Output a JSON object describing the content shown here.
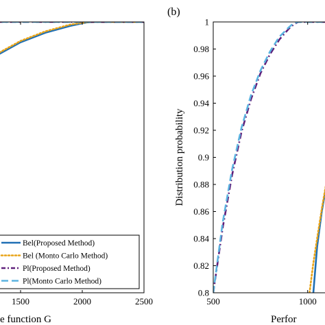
{
  "colors": {
    "bel_proposed": "#1f6fb4",
    "bel_monte_carlo": "#e8a317",
    "pl_proposed": "#5e1f7a",
    "pl_monte_carlo": "#5bb3e0"
  },
  "chart_data": [
    {
      "type": "line",
      "panel_label": "",
      "xlabel": "e function G",
      "ylabel": "",
      "xlim": [
        1100,
        2500
      ],
      "ylim": [
        0.8,
        1.0
      ],
      "x_ticks": [
        1500,
        2000,
        2500
      ],
      "legend": {
        "placement": "bottom-left",
        "entries": [
          "Bel(Proposed Method)",
          "Bel (Monto Carlo Method)",
          "Pl(Proposed Method)",
          "Pl(Monto Carlo Method)"
        ]
      },
      "series": [
        {
          "name": "Bel(Proposed Method)",
          "style": "solid",
          "color": "#1f6fb4",
          "x": [
            1100,
            1300,
            1500,
            1700,
            1900,
            2000,
            2050,
            2100,
            2500
          ],
          "y": [
            0.958,
            0.975,
            0.985,
            0.992,
            0.997,
            0.999,
            0.9998,
            1.0,
            1.0
          ]
        },
        {
          "name": "Bel (Monto Carlo Method)",
          "style": "dotted",
          "color": "#e8a317",
          "x": [
            1100,
            1300,
            1500,
            1700,
            1900,
            2000,
            2050,
            2100,
            2500
          ],
          "y": [
            0.959,
            0.976,
            0.986,
            0.993,
            0.998,
            0.9993,
            0.9999,
            1.0,
            1.0
          ]
        },
        {
          "name": "Pl(Proposed Method)",
          "style": "dashdot",
          "color": "#5e1f7a",
          "x": [
            1100,
            1200,
            1300,
            1400,
            2500
          ],
          "y": [
            0.997,
            0.999,
            1.0,
            1.0,
            1.0
          ]
        },
        {
          "name": "Pl(Monto Carlo Method)",
          "style": "dashed",
          "color": "#5bb3e0",
          "x": [
            1100,
            1200,
            1300,
            1400,
            2500
          ],
          "y": [
            0.997,
            0.999,
            1.0,
            1.0,
            1.0
          ]
        }
      ]
    },
    {
      "type": "line",
      "panel_label": "(b)",
      "xlabel": "Perfor",
      "ylabel": "Distribution probability",
      "xlim": [
        500,
        1150
      ],
      "ylim": [
        0.8,
        1.0
      ],
      "x_ticks": [
        500,
        1000
      ],
      "y_ticks": [
        "0.8",
        "0.82",
        "0.84",
        "0.86",
        "0.88",
        "0.9",
        "0.92",
        "0.94",
        "0.96",
        "0.98",
        "1"
      ],
      "series": [
        {
          "name": "Pl(Proposed Method)",
          "style": "dashdot",
          "color": "#5e1f7a",
          "x": [
            500,
            550,
            600,
            650,
            700,
            750,
            800,
            850,
            900,
            925,
            950,
            1000,
            1150
          ],
          "y": [
            0.8,
            0.848,
            0.887,
            0.919,
            0.943,
            0.962,
            0.976,
            0.987,
            0.995,
            0.998,
            1.0,
            1.0,
            1.0
          ]
        },
        {
          "name": "Pl(Monto Carlo Method)",
          "style": "dashed",
          "color": "#5bb3e0",
          "x": [
            500,
            550,
            600,
            650,
            700,
            750,
            800,
            850,
            900,
            925,
            950,
            1000,
            1150
          ],
          "y": [
            0.8,
            0.852,
            0.891,
            0.922,
            0.946,
            0.964,
            0.978,
            0.989,
            0.996,
            0.999,
            1.0,
            1.0,
            1.0
          ]
        },
        {
          "name": "Bel(Proposed Method)",
          "style": "solid",
          "color": "#1f6fb4",
          "x": [
            1030,
            1050,
            1075,
            1100,
            1125,
            1150
          ],
          "y": [
            0.8,
            0.834,
            0.86,
            0.88,
            0.895,
            0.91
          ]
        },
        {
          "name": "Bel (Monto Carlo Method)",
          "style": "dotted",
          "color": "#e8a317",
          "x": [
            1010,
            1030,
            1050,
            1075,
            1100,
            1125,
            1150
          ],
          "y": [
            0.8,
            0.822,
            0.84,
            0.862,
            0.882,
            0.897,
            0.911
          ]
        }
      ]
    }
  ]
}
